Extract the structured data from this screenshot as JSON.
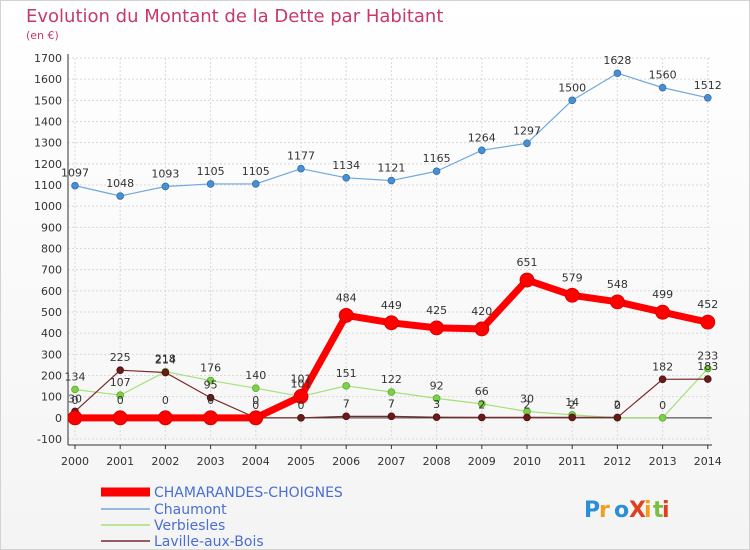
{
  "title": "Evolution du Montant de la Dette par Habitant",
  "subtitle": "(en €)",
  "logo_text": "ProXiti",
  "chart_data": {
    "type": "line",
    "title": "Evolution du Montant de la Dette par Habitant",
    "subtitle": "(en €)",
    "xlabel": "",
    "ylabel": "",
    "ylim": [
      -100,
      1700
    ],
    "yticks": [
      -100,
      0,
      100,
      200,
      300,
      400,
      500,
      600,
      700,
      800,
      900,
      1000,
      1100,
      1200,
      1300,
      1400,
      1500,
      1600,
      1700
    ],
    "grid": true,
    "legend_position": "bottom-left",
    "categories": [
      "2000",
      "2001",
      "2002",
      "2003",
      "2004",
      "2005",
      "2006",
      "2007",
      "2008",
      "2009",
      "2010",
      "2011",
      "2012",
      "2013",
      "2014"
    ],
    "series": [
      {
        "name": "CHAMARANDES-CHOIGNES",
        "color": "#ff0000",
        "values": [
          0,
          0,
          0,
          0,
          0,
          101,
          484,
          449,
          425,
          420,
          651,
          579,
          548,
          499,
          452
        ]
      },
      {
        "name": "Chaumont",
        "color": "#6fa8dc",
        "values": [
          1097,
          1048,
          1093,
          1105,
          1105,
          1177,
          1134,
          1121,
          1165,
          1264,
          1297,
          1500,
          1628,
          1560,
          1512
        ]
      },
      {
        "name": "Verbiesles",
        "color": "#a6e07a",
        "values": [
          134,
          107,
          218,
          176,
          140,
          101,
          151,
          122,
          92,
          66,
          30,
          14,
          0,
          0,
          233
        ]
      },
      {
        "name": "Laville-aux-Bois",
        "color": "#7a2a2a",
        "values": [
          30,
          225,
          214,
          95,
          0,
          0,
          7,
          7,
          3,
          2,
          2,
          2,
          2,
          182,
          183
        ]
      }
    ]
  }
}
